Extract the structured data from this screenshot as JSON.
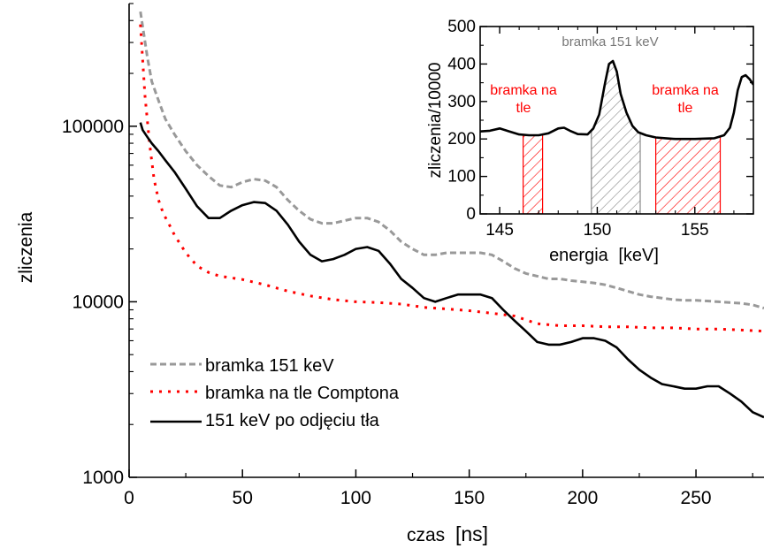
{
  "chart_data": [
    {
      "type": "line",
      "scale": "log-y",
      "xlabel": "czas",
      "xunit": "[ns]",
      "ylabel": "zliczenia",
      "xlim": [
        0,
        280
      ],
      "ylim": [
        1000,
        500000
      ],
      "xticks": [
        0,
        50,
        100,
        150,
        200,
        250
      ],
      "yticks": [
        1000,
        10000,
        100000
      ],
      "ytick_labels": [
        "1000",
        "10000",
        "100000"
      ],
      "legend_position": "bottom-left",
      "series": [
        {
          "name": "bramka 151 keV",
          "style": "dashed",
          "color": "#999999",
          "x": [
            5,
            8,
            10,
            13,
            16,
            20,
            25,
            30,
            35,
            40,
            45,
            50,
            55,
            60,
            65,
            70,
            75,
            80,
            85,
            90,
            95,
            100,
            105,
            110,
            115,
            120,
            125,
            130,
            135,
            140,
            145,
            150,
            155,
            160,
            165,
            170,
            175,
            180,
            185,
            190,
            195,
            200,
            205,
            210,
            215,
            220,
            225,
            230,
            235,
            240,
            245,
            250,
            255,
            260,
            265,
            270,
            275,
            280
          ],
          "y": [
            450000,
            250000,
            180000,
            140000,
            110000,
            90000,
            72000,
            60000,
            52000,
            46000,
            45000,
            48000,
            50000,
            49000,
            45000,
            38000,
            33000,
            29500,
            28000,
            28000,
            29000,
            30000,
            30000,
            28500,
            25500,
            22000,
            20000,
            18500,
            18500,
            19000,
            19000,
            19000,
            19000,
            18500,
            17000,
            15500,
            14500,
            14000,
            13500,
            13500,
            13200,
            13000,
            12800,
            12500,
            12000,
            11500,
            11000,
            10700,
            10500,
            10300,
            10200,
            10200,
            10100,
            10000,
            9900,
            9800,
            9600,
            9200
          ]
        },
        {
          "name": "bramka na tle Comptona",
          "style": "dotted",
          "color": "#ff0000",
          "x": [
            5,
            7,
            9,
            11,
            13,
            15,
            18,
            20,
            25,
            30,
            35,
            40,
            45,
            50,
            60,
            70,
            80,
            90,
            100,
            110,
            120,
            130,
            140,
            150,
            160,
            170,
            180,
            190,
            200,
            210,
            220,
            230,
            240,
            250,
            260,
            270,
            280
          ],
          "y": [
            380000,
            150000,
            80000,
            50000,
            38000,
            32000,
            27000,
            24000,
            19000,
            16000,
            14700,
            14000,
            13700,
            13400,
            12500,
            11500,
            10800,
            10300,
            10000,
            9900,
            9700,
            9300,
            9100,
            8900,
            8600,
            8300,
            7500,
            7300,
            7300,
            7200,
            7200,
            7100,
            7100,
            7000,
            7000,
            6900,
            6800
          ]
        },
        {
          "name": "151 keV po odjęciu tła",
          "style": "solid",
          "color": "#000000",
          "x": [
            5,
            6,
            8,
            10,
            13,
            16,
            20,
            25,
            30,
            35,
            40,
            45,
            50,
            55,
            60,
            65,
            70,
            75,
            80,
            85,
            90,
            95,
            100,
            105,
            110,
            115,
            120,
            125,
            130,
            135,
            140,
            145,
            150,
            155,
            160,
            165,
            170,
            175,
            180,
            185,
            190,
            195,
            200,
            205,
            210,
            215,
            220,
            225,
            230,
            235,
            240,
            245,
            250,
            255,
            260,
            265,
            270,
            275,
            280
          ],
          "y": [
            105000,
            95000,
            87000,
            80000,
            72000,
            64000,
            55000,
            44000,
            35000,
            30000,
            30000,
            33000,
            35500,
            37000,
            36500,
            33000,
            27500,
            22000,
            18500,
            17000,
            17500,
            18500,
            20000,
            20500,
            19500,
            16500,
            13500,
            12000,
            10500,
            10000,
            10500,
            11000,
            11000,
            11000,
            10500,
            9000,
            7800,
            6800,
            5900,
            5700,
            5700,
            5900,
            6200,
            6200,
            6000,
            5500,
            4700,
            4100,
            3700,
            3400,
            3300,
            3200,
            3200,
            3300,
            3300,
            3000,
            2700,
            2350,
            2200
          ]
        }
      ]
    },
    {
      "type": "line",
      "xlabel": "energia",
      "xunit": "[keV]",
      "ylabel": "zliczenia/10000",
      "title": "bramka 151 keV",
      "xlim": [
        144,
        158
      ],
      "ylim": [
        0,
        500
      ],
      "xticks": [
        145,
        150,
        155
      ],
      "yticks": [
        0,
        100,
        200,
        300,
        400,
        500
      ],
      "annotations": [
        "bramka na tle",
        "bramka na tle"
      ],
      "gate_regions": [
        {
          "kind": "background",
          "from": 146.2,
          "to": 147.2,
          "color": "#ff0000"
        },
        {
          "kind": "peak",
          "from": 149.7,
          "to": 152.2,
          "color": "#888888"
        },
        {
          "kind": "background",
          "from": 153.0,
          "to": 156.3,
          "color": "#ff0000"
        }
      ],
      "series": [
        {
          "color": "#000000",
          "x": [
            144,
            144.5,
            145,
            145.5,
            146,
            146.5,
            147,
            147.5,
            148,
            148.3,
            148.6,
            149,
            149.5,
            149.8,
            150.1,
            150.4,
            150.6,
            150.8,
            151,
            151.2,
            151.5,
            151.8,
            152.1,
            152.5,
            153,
            153.5,
            154,
            154.5,
            155,
            155.5,
            156,
            156.5,
            156.8,
            157,
            157.2,
            157.4,
            157.6,
            157.8,
            158
          ],
          "y": [
            220,
            222,
            228,
            220,
            212,
            210,
            210,
            215,
            228,
            230,
            222,
            213,
            212,
            228,
            265,
            350,
            400,
            408,
            380,
            320,
            270,
            235,
            218,
            210,
            204,
            202,
            200,
            200,
            200,
            201,
            202,
            210,
            230,
            270,
            330,
            365,
            370,
            360,
            345
          ]
        }
      ]
    }
  ],
  "main_legend": [
    "bramka 151 keV",
    "bramka na tle Comptona",
    "151 keV po odjęciu tła"
  ]
}
